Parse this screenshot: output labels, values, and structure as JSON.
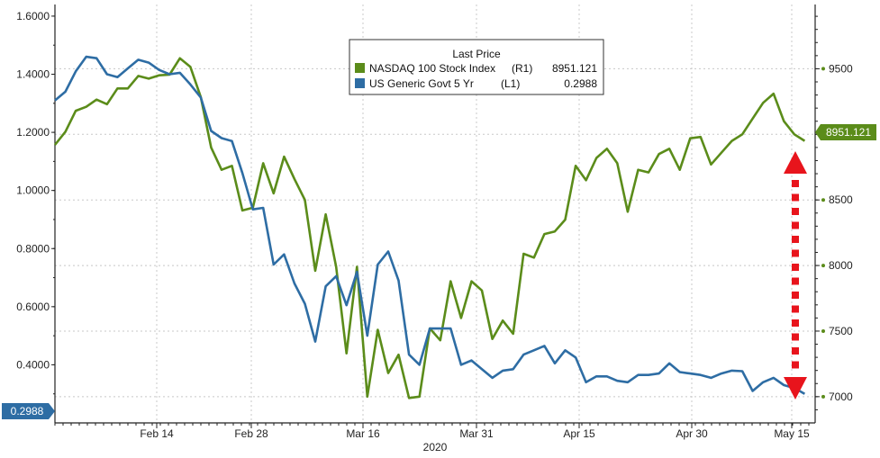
{
  "chart_data": {
    "type": "line",
    "xlabel": "2020",
    "x_ticks": [
      "Feb 14",
      "Feb 28",
      "Mar 16",
      "Mar 31",
      "Apr 15",
      "Apr 30",
      "May 15"
    ],
    "legend": {
      "title": "Last Price",
      "entries": [
        {
          "label": "NASDAQ 100 Stock Index",
          "axis": "(R1)",
          "value": "8951.121",
          "color": "#5b8c1a"
        },
        {
          "label": "US Generic Govt 5 Yr",
          "axis": "(L1)",
          "value": "0.2988",
          "color": "#2e6da4"
        }
      ]
    },
    "left_axis": {
      "ticks": [
        "1.6000",
        "1.4000",
        "1.2000",
        "1.0000",
        "0.8000",
        "0.6000",
        "0.4000"
      ],
      "ylim": [
        0.2,
        1.64
      ],
      "last_label": "0.2988"
    },
    "right_axis": {
      "ticks": [
        "9500",
        "9000",
        "8500",
        "8000",
        "7500",
        "7000"
      ],
      "ylim": [
        6800,
        9990
      ],
      "last_label": "8951.121"
    },
    "series": [
      {
        "name": "NASDAQ 100 Stock Index",
        "axis": "right",
        "color": "#5b8c1a",
        "points": [
          [
            0,
            8920
          ],
          [
            2,
            9020
          ],
          [
            4,
            9180
          ],
          [
            6,
            9210
          ],
          [
            8,
            9265
          ],
          [
            10,
            9230
          ],
          [
            12,
            9350
          ],
          [
            14,
            9350
          ],
          [
            16,
            9445
          ],
          [
            18,
            9425
          ],
          [
            20,
            9450
          ],
          [
            22,
            9455
          ],
          [
            24,
            9580
          ],
          [
            26,
            9515
          ],
          [
            28,
            9285
          ],
          [
            30,
            8900
          ],
          [
            32,
            8730
          ],
          [
            34,
            8760
          ],
          [
            36,
            8420
          ],
          [
            38,
            8440
          ],
          [
            40,
            8780
          ],
          [
            42,
            8550
          ],
          [
            44,
            8830
          ],
          [
            46,
            8660
          ],
          [
            48,
            8500
          ],
          [
            50,
            7960
          ],
          [
            52,
            8390
          ],
          [
            54,
            7990
          ],
          [
            56,
            7330
          ],
          [
            58,
            7990
          ],
          [
            60,
            7000
          ],
          [
            62,
            7510
          ],
          [
            64,
            7180
          ],
          [
            66,
            7320
          ],
          [
            68,
            6990
          ],
          [
            70,
            7000
          ],
          [
            72,
            7520
          ],
          [
            74,
            7430
          ],
          [
            76,
            7880
          ],
          [
            78,
            7600
          ],
          [
            80,
            7880
          ],
          [
            82,
            7810
          ],
          [
            84,
            7440
          ],
          [
            86,
            7580
          ],
          [
            88,
            7480
          ],
          [
            90,
            8090
          ],
          [
            92,
            8060
          ],
          [
            94,
            8240
          ],
          [
            96,
            8260
          ],
          [
            98,
            8350
          ],
          [
            100,
            8760
          ],
          [
            102,
            8650
          ],
          [
            104,
            8820
          ],
          [
            106,
            8890
          ],
          [
            108,
            8780
          ],
          [
            110,
            8410
          ],
          [
            112,
            8730
          ],
          [
            114,
            8710
          ],
          [
            116,
            8850
          ],
          [
            118,
            8890
          ],
          [
            120,
            8730
          ],
          [
            122,
            8970
          ],
          [
            124,
            8980
          ],
          [
            126,
            8770
          ],
          [
            128,
            8860
          ],
          [
            130,
            8950
          ],
          [
            132,
            9000
          ],
          [
            134,
            9120
          ],
          [
            136,
            9240
          ],
          [
            138,
            9310
          ],
          [
            140,
            9100
          ],
          [
            142,
            9000
          ],
          [
            144,
            8950
          ]
        ]
      },
      {
        "name": "US Generic Govt 5 Yr",
        "axis": "left",
        "color": "#2e6da4",
        "points": [
          [
            0,
            1.31
          ],
          [
            2,
            1.34
          ],
          [
            4,
            1.41
          ],
          [
            6,
            1.46
          ],
          [
            8,
            1.455
          ],
          [
            10,
            1.4
          ],
          [
            12,
            1.39
          ],
          [
            14,
            1.42
          ],
          [
            16,
            1.45
          ],
          [
            18,
            1.44
          ],
          [
            20,
            1.415
          ],
          [
            22,
            1.4
          ],
          [
            24,
            1.405
          ],
          [
            26,
            1.365
          ],
          [
            28,
            1.32
          ],
          [
            30,
            1.205
          ],
          [
            32,
            1.18
          ],
          [
            34,
            1.17
          ],
          [
            36,
            1.06
          ],
          [
            38,
            0.935
          ],
          [
            40,
            0.94
          ],
          [
            42,
            0.745
          ],
          [
            44,
            0.78
          ],
          [
            46,
            0.68
          ],
          [
            48,
            0.61
          ],
          [
            50,
            0.48
          ],
          [
            52,
            0.67
          ],
          [
            54,
            0.705
          ],
          [
            56,
            0.605
          ],
          [
            58,
            0.72
          ],
          [
            60,
            0.5
          ],
          [
            62,
            0.745
          ],
          [
            64,
            0.79
          ],
          [
            66,
            0.69
          ],
          [
            68,
            0.435
          ],
          [
            70,
            0.4
          ],
          [
            72,
            0.525
          ],
          [
            74,
            0.525
          ],
          [
            76,
            0.525
          ],
          [
            78,
            0.4
          ],
          [
            80,
            0.415
          ],
          [
            82,
            0.385
          ],
          [
            84,
            0.355
          ],
          [
            86,
            0.38
          ],
          [
            88,
            0.385
          ],
          [
            90,
            0.435
          ],
          [
            92,
            0.45
          ],
          [
            94,
            0.465
          ],
          [
            96,
            0.405
          ],
          [
            98,
            0.45
          ],
          [
            100,
            0.425
          ],
          [
            102,
            0.34
          ],
          [
            104,
            0.36
          ],
          [
            106,
            0.36
          ],
          [
            108,
            0.345
          ],
          [
            110,
            0.34
          ],
          [
            112,
            0.365
          ],
          [
            114,
            0.365
          ],
          [
            116,
            0.37
          ],
          [
            118,
            0.405
          ],
          [
            120,
            0.375
          ],
          [
            122,
            0.37
          ],
          [
            124,
            0.365
          ],
          [
            126,
            0.355
          ],
          [
            128,
            0.37
          ],
          [
            130,
            0.38
          ],
          [
            132,
            0.378
          ],
          [
            134,
            0.31
          ],
          [
            136,
            0.34
          ],
          [
            138,
            0.355
          ],
          [
            140,
            0.33
          ],
          [
            142,
            0.32
          ],
          [
            144,
            0.3
          ]
        ]
      }
    ],
    "annotation": "red dotted double-headed arrow"
  }
}
